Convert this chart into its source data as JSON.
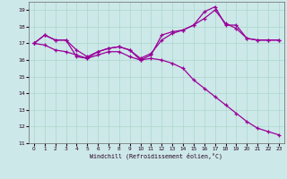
{
  "xlabel": "Windchill (Refroidissement éolien,°C)",
  "xlim": [
    -0.5,
    23.5
  ],
  "ylim": [
    11,
    19.5
  ],
  "yticks": [
    11,
    12,
    13,
    14,
    15,
    16,
    17,
    18,
    19
  ],
  "xticks": [
    0,
    1,
    2,
    3,
    4,
    5,
    6,
    7,
    8,
    9,
    10,
    11,
    12,
    13,
    14,
    15,
    16,
    17,
    18,
    19,
    20,
    21,
    22,
    23
  ],
  "bg_color": "#cde8e8",
  "grid_color": "#a8d8cc",
  "line_color": "#990099",
  "line1": [
    17.0,
    17.5,
    17.2,
    17.2,
    16.6,
    16.2,
    16.5,
    16.7,
    16.8,
    16.6,
    16.0,
    16.3,
    17.5,
    17.7,
    17.8,
    18.1,
    18.5,
    19.0,
    18.2,
    17.9,
    17.3,
    17.2,
    17.2,
    17.2
  ],
  "line2": [
    17.0,
    17.5,
    17.2,
    17.2,
    16.2,
    16.1,
    16.5,
    16.7,
    16.8,
    16.6,
    16.1,
    16.4,
    17.2,
    17.6,
    17.8,
    18.1,
    18.9,
    19.2,
    18.1,
    18.1,
    17.3,
    17.2,
    17.2,
    17.2
  ],
  "line3": [
    17.0,
    16.9,
    16.6,
    16.5,
    16.3,
    16.1,
    16.3,
    16.5,
    16.5,
    16.2,
    16.0,
    16.1,
    16.0,
    15.8,
    15.5,
    14.8,
    14.3,
    13.8,
    13.3,
    12.8,
    12.3,
    11.9,
    11.7,
    11.5
  ]
}
